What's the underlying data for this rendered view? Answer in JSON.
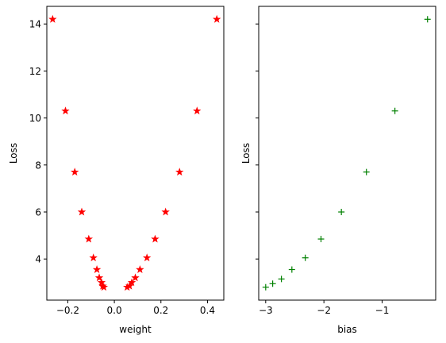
{
  "chart_data": [
    {
      "type": "scatter",
      "marker": "star",
      "color": "#ff0000",
      "xlabel": "weight",
      "ylabel": "Loss",
      "xlim": [
        -0.29,
        0.47
      ],
      "ylim": [
        2.25,
        14.75
      ],
      "xticks": [
        -0.2,
        0.0,
        0.2,
        0.4
      ],
      "xtick_labels": [
        "−0.2",
        "0.0",
        "0.2",
        "0.4"
      ],
      "yticks": [
        4,
        6,
        8,
        10,
        12,
        14
      ],
      "ytick_labels": [
        "4",
        "6",
        "8",
        "10",
        "12",
        "14"
      ],
      "points": [
        {
          "x": -0.265,
          "y": 14.2
        },
        {
          "x": -0.21,
          "y": 10.3
        },
        {
          "x": -0.17,
          "y": 7.7
        },
        {
          "x": -0.14,
          "y": 6.0
        },
        {
          "x": -0.11,
          "y": 4.85
        },
        {
          "x": -0.09,
          "y": 4.05
        },
        {
          "x": -0.075,
          "y": 3.55
        },
        {
          "x": -0.065,
          "y": 3.2
        },
        {
          "x": -0.055,
          "y": 3.0
        },
        {
          "x": -0.05,
          "y": 2.85
        },
        {
          "x": -0.045,
          "y": 2.8
        },
        {
          "x": 0.055,
          "y": 2.8
        },
        {
          "x": 0.065,
          "y": 2.85
        },
        {
          "x": 0.075,
          "y": 3.0
        },
        {
          "x": 0.09,
          "y": 3.2
        },
        {
          "x": 0.11,
          "y": 3.55
        },
        {
          "x": 0.14,
          "y": 4.05
        },
        {
          "x": 0.175,
          "y": 4.85
        },
        {
          "x": 0.22,
          "y": 6.0
        },
        {
          "x": 0.28,
          "y": 7.7
        },
        {
          "x": 0.355,
          "y": 10.3
        },
        {
          "x": 0.44,
          "y": 14.2
        }
      ]
    },
    {
      "type": "scatter",
      "marker": "plus",
      "color": "#008000",
      "xlabel": "bias",
      "ylabel": "Loss",
      "xlim": [
        -3.12,
        -0.08
      ],
      "ylim": [
        2.25,
        14.75
      ],
      "shared_y": true,
      "xticks": [
        -3,
        -2,
        -1
      ],
      "xtick_labels": [
        "−3",
        "−2",
        "−1"
      ],
      "yticks": [
        4,
        6,
        8,
        10,
        12,
        14
      ],
      "ytick_labels": [],
      "points": [
        {
          "x": -3.0,
          "y": 2.8
        },
        {
          "x": -2.88,
          "y": 2.95
        },
        {
          "x": -2.73,
          "y": 3.15
        },
        {
          "x": -2.55,
          "y": 3.55
        },
        {
          "x": -2.32,
          "y": 4.05
        },
        {
          "x": -2.05,
          "y": 4.85
        },
        {
          "x": -1.7,
          "y": 6.0
        },
        {
          "x": -1.27,
          "y": 7.7
        },
        {
          "x": -0.78,
          "y": 10.3
        },
        {
          "x": -0.22,
          "y": 14.2
        }
      ]
    }
  ]
}
